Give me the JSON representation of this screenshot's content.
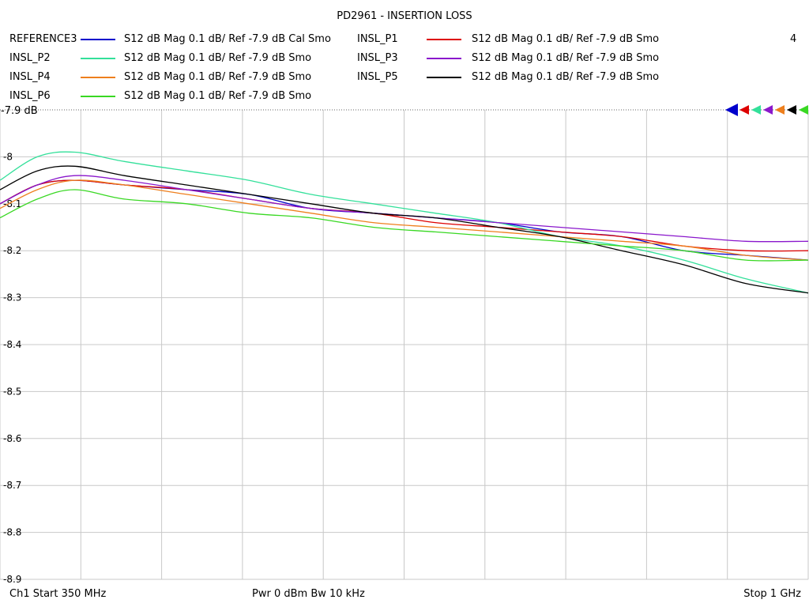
{
  "chart_data": {
    "type": "line",
    "title": "PD2961 - INSERTION LOSS",
    "x_unit": "GHz",
    "xlim": [
      0.35,
      1.0
    ],
    "ylim": [
      -8.9,
      -7.9
    ],
    "y_ticks": [
      "-8",
      "-8.1",
      "-8.2",
      "-8.3",
      "-8.4",
      "-8.5",
      "-8.6",
      "-8.7",
      "-8.8",
      "-8.9"
    ],
    "reference_label": "-7.9 dB",
    "grid": true,
    "legend_position": "top",
    "series": [
      {
        "name": "REFERENCE3",
        "desc": "S12  dB Mag  0.1 dB/ Ref -7.9 dB  Cal Smo",
        "color": "#0000cc",
        "x": [
          0.35,
          0.38,
          0.41,
          0.45,
          0.5,
          0.55,
          0.6,
          0.65,
          0.7,
          0.75,
          0.8,
          0.85,
          0.9,
          0.95,
          1.0
        ],
        "y": [
          -8.1,
          -8.06,
          -8.05,
          -8.06,
          -8.07,
          -8.08,
          -8.11,
          -8.12,
          -8.13,
          -8.14,
          -8.16,
          -8.17,
          -8.2,
          -8.21,
          -8.22
        ]
      },
      {
        "name": "INSL_P1",
        "desc": "S12  dB Mag  0.1 dB/ Ref -7.9 dB  Smo",
        "color": "#dd0000",
        "x": [
          0.35,
          0.38,
          0.41,
          0.45,
          0.5,
          0.55,
          0.6,
          0.65,
          0.7,
          0.75,
          0.8,
          0.85,
          0.9,
          0.95,
          1.0
        ],
        "y": [
          -8.1,
          -8.06,
          -8.05,
          -8.06,
          -8.07,
          -8.09,
          -8.11,
          -8.12,
          -8.14,
          -8.15,
          -8.16,
          -8.17,
          -8.19,
          -8.2,
          -8.2
        ]
      },
      {
        "name": "INSL_P2",
        "desc": "S12  dB Mag  0.1 dB/ Ref -7.9 dB  Smo",
        "color": "#33e09a",
        "x": [
          0.35,
          0.38,
          0.41,
          0.45,
          0.5,
          0.55,
          0.6,
          0.65,
          0.7,
          0.75,
          0.8,
          0.85,
          0.9,
          0.95,
          1.0
        ],
        "y": [
          -8.05,
          -8.0,
          -7.99,
          -8.01,
          -8.03,
          -8.05,
          -8.08,
          -8.1,
          -8.12,
          -8.14,
          -8.17,
          -8.19,
          -8.22,
          -8.26,
          -8.29
        ]
      },
      {
        "name": "INSL_P3",
        "desc": "S12  dB Mag  0.1 dB/ Ref -7.9 dB  Smo",
        "color": "#8a17cc",
        "x": [
          0.35,
          0.38,
          0.41,
          0.45,
          0.5,
          0.55,
          0.6,
          0.65,
          0.7,
          0.75,
          0.8,
          0.85,
          0.9,
          0.95,
          1.0
        ],
        "y": [
          -8.1,
          -8.06,
          -8.04,
          -8.05,
          -8.07,
          -8.09,
          -8.11,
          -8.12,
          -8.13,
          -8.14,
          -8.15,
          -8.16,
          -8.17,
          -8.18,
          -8.18
        ]
      },
      {
        "name": "INSL_P4",
        "desc": "S12  dB Mag  0.1 dB/ Ref -7.9 dB  Smo",
        "color": "#ee7f1d",
        "x": [
          0.35,
          0.38,
          0.41,
          0.45,
          0.5,
          0.55,
          0.6,
          0.65,
          0.7,
          0.75,
          0.8,
          0.85,
          0.9,
          0.95,
          1.0
        ],
        "y": [
          -8.11,
          -8.07,
          -8.05,
          -8.06,
          -8.08,
          -8.1,
          -8.12,
          -8.14,
          -8.15,
          -8.16,
          -8.17,
          -8.18,
          -8.19,
          -8.21,
          -8.22
        ]
      },
      {
        "name": "INSL_P5",
        "desc": "S12  dB Mag  0.1 dB/ Ref -7.9 dB  Smo",
        "color": "#000000",
        "x": [
          0.35,
          0.38,
          0.41,
          0.45,
          0.5,
          0.55,
          0.6,
          0.65,
          0.7,
          0.75,
          0.8,
          0.85,
          0.9,
          0.95,
          1.0
        ],
        "y": [
          -8.07,
          -8.03,
          -8.02,
          -8.04,
          -8.06,
          -8.08,
          -8.1,
          -8.12,
          -8.13,
          -8.15,
          -8.17,
          -8.2,
          -8.23,
          -8.27,
          -8.29
        ]
      },
      {
        "name": "INSL_P6",
        "desc": "S12  dB Mag  0.1 dB/ Ref -7.9 dB  Smo",
        "color": "#39d823",
        "x": [
          0.35,
          0.38,
          0.41,
          0.45,
          0.5,
          0.55,
          0.6,
          0.65,
          0.7,
          0.75,
          0.8,
          0.85,
          0.9,
          0.95,
          1.0
        ],
        "y": [
          -8.13,
          -8.09,
          -8.07,
          -8.09,
          -8.1,
          -8.12,
          -8.13,
          -8.15,
          -8.16,
          -8.17,
          -8.18,
          -8.19,
          -8.2,
          -8.22,
          -8.22
        ]
      }
    ]
  },
  "channel_number": "4",
  "footer": {
    "left": "Ch1  Start  350 MHz",
    "middle": "Pwr  0 dBm  Bw  10 kHz",
    "right": "Stop  1 GHz"
  }
}
